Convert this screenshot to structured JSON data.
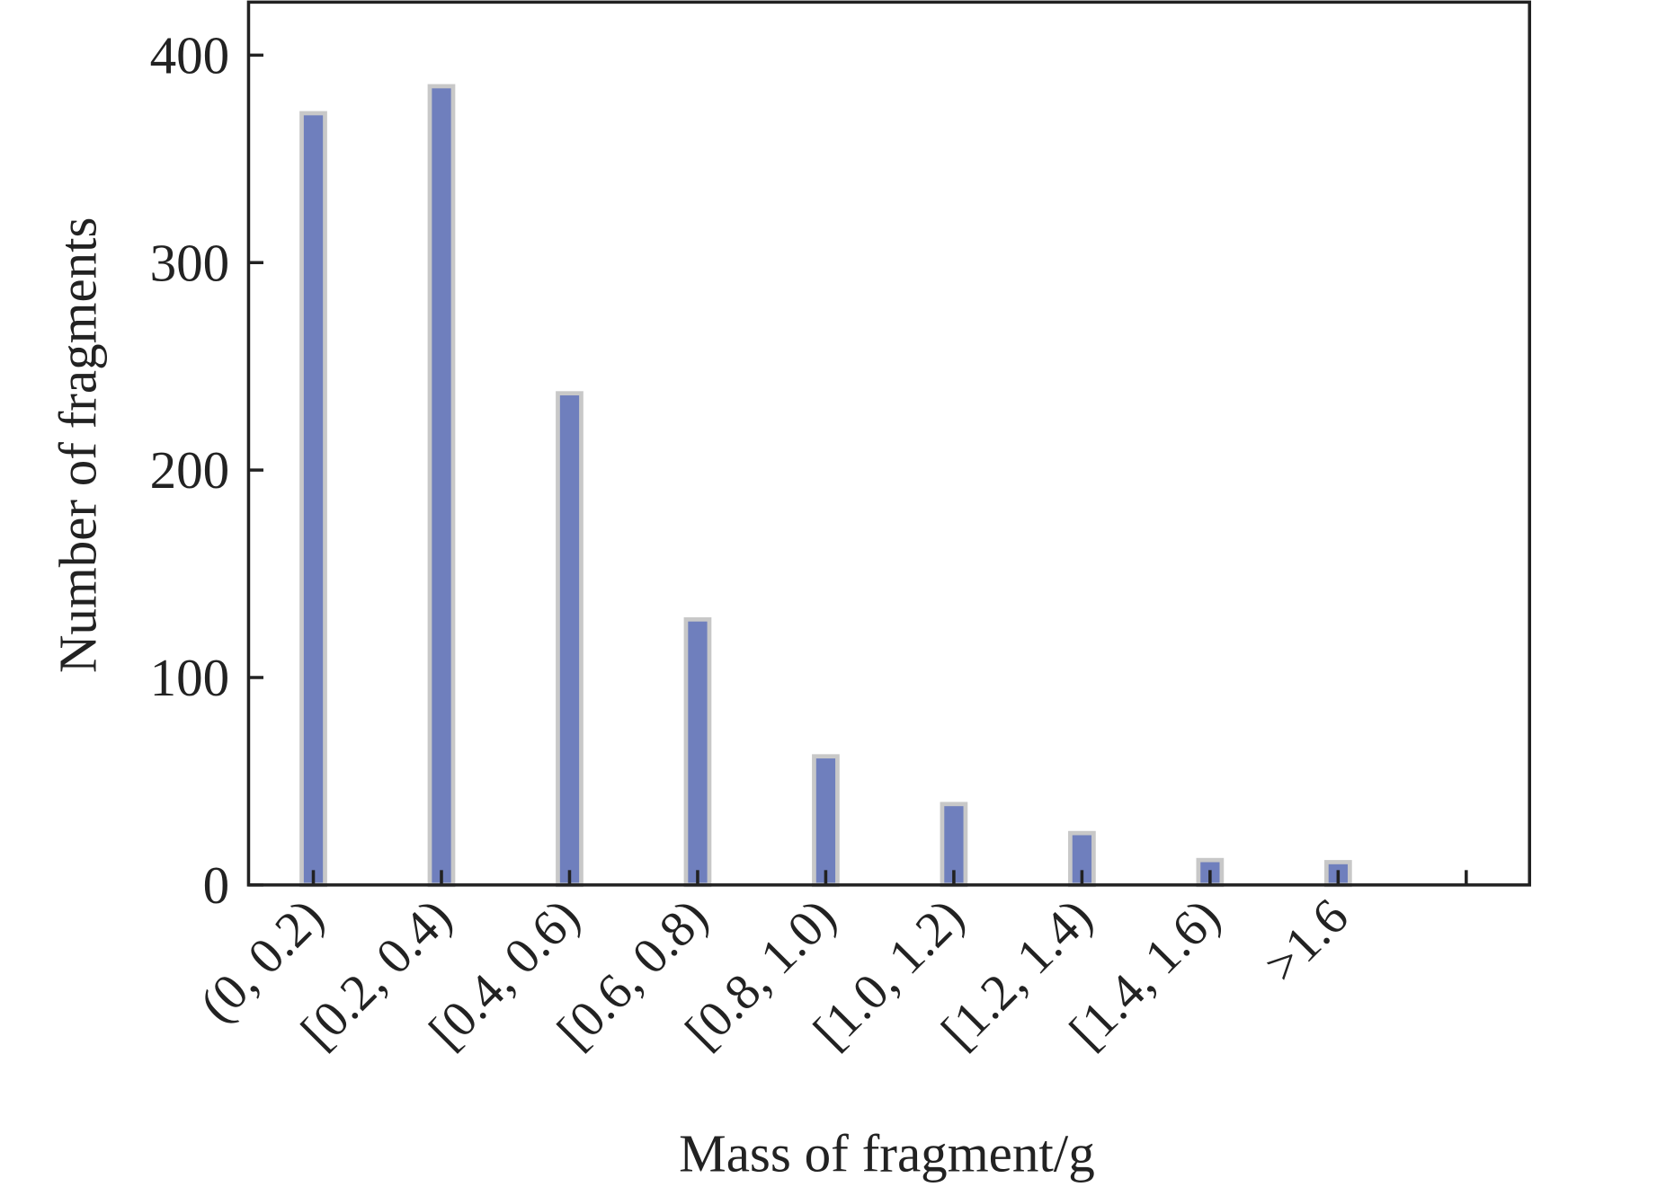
{
  "chart_data": {
    "type": "bar",
    "title": "",
    "xlabel": "Mass of fragment/g",
    "ylabel": "Number of fragments",
    "categories": [
      "(0, 0.2)",
      "[0.2, 0.4)",
      "[0.4, 0.6)",
      "[0.6, 0.8)",
      "[0.8, 1.0)",
      "[1.0, 1.2)",
      "[1.2, 1.4)",
      "[1.4, 1.6)",
      ">1.6"
    ],
    "values": [
      372,
      385,
      237,
      128,
      62,
      39,
      25,
      12,
      11
    ],
    "ylim": [
      0,
      425
    ],
    "yticks": [
      0,
      100,
      200,
      300,
      400
    ],
    "grid": false,
    "colors": {
      "bar_fill": "#6f7fbd",
      "bar_edge": "#c8c8c8",
      "axis": "#222222"
    }
  }
}
